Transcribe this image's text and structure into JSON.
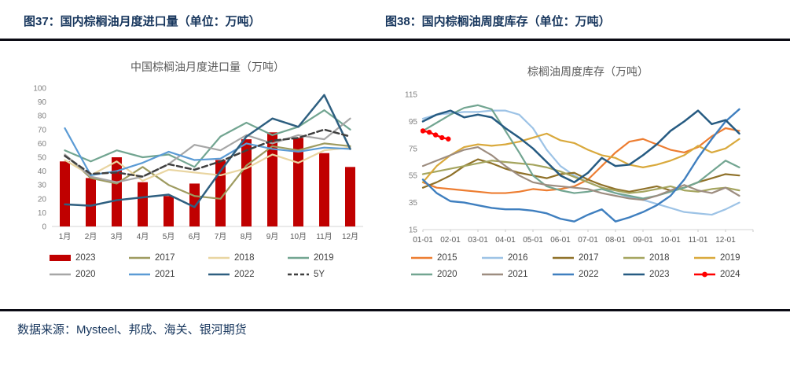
{
  "header": {
    "left_title": "图37：国内棕榈油月度进口量（单位：万吨）",
    "right_title": "图38：国内棕榈油周度库存（单位：万吨）"
  },
  "footer": {
    "source": "数据来源：Mysteel、邦成、海关、银河期货"
  },
  "colors": {
    "caption_navy": "#17365D",
    "bar_red": "#C00000",
    "series_2024_red": "#FF0000",
    "axis_gray": "#808080",
    "title_gray": "#595959"
  },
  "chart_data": [
    {
      "type": "bar",
      "title": "中国棕榈油月度进口量（万吨）",
      "xlabel": "",
      "ylabel": "",
      "ylim": [
        0,
        100
      ],
      "ytick_step": 10,
      "grid": false,
      "legend_position": "bottom",
      "categories": [
        "1月",
        "2月",
        "3月",
        "4月",
        "5月",
        "6月",
        "7月",
        "8月",
        "9月",
        "10月",
        "11月",
        "12月"
      ],
      "series": [
        {
          "name": "2023",
          "style": "bar",
          "color": "#C00000",
          "values": [
            47,
            35,
            50,
            32,
            22,
            31,
            48,
            63,
            68,
            64,
            53,
            43
          ]
        },
        {
          "name": "2017",
          "style": "line",
          "color": "#9E9B60",
          "values": [
            52,
            35,
            31,
            43,
            30,
            22,
            20,
            44,
            58,
            55,
            60,
            58
          ]
        },
        {
          "name": "2018",
          "style": "line",
          "color": "#E9D5A1",
          "values": [
            48,
            37,
            47,
            33,
            41,
            39,
            37,
            42,
            52,
            46,
            55,
            57
          ]
        },
        {
          "name": "2019",
          "style": "line",
          "color": "#72A591",
          "values": [
            55,
            47,
            55,
            50,
            52,
            43,
            65,
            75,
            66,
            72,
            84,
            70
          ]
        },
        {
          "name": "2020",
          "style": "line",
          "color": "#A6A6A6",
          "values": [
            52,
            36,
            32,
            36,
            45,
            59,
            55,
            66,
            60,
            66,
            63,
            78
          ]
        },
        {
          "name": "2021",
          "style": "line",
          "color": "#5B9BD5",
          "values": [
            71,
            37,
            40,
            46,
            54,
            48,
            49,
            60,
            56,
            54,
            57,
            56
          ]
        },
        {
          "name": "2022",
          "style": "line",
          "color": "#2E5F80",
          "width": 2.5,
          "values": [
            16,
            15,
            19,
            21,
            23,
            14,
            40,
            65,
            78,
            72,
            95,
            56
          ]
        },
        {
          "name": "5Y",
          "style": "dashed",
          "color": "#404040",
          "width": 2.5,
          "values": [
            51,
            38,
            39,
            36,
            45,
            41,
            47,
            55,
            62,
            64,
            70,
            65
          ]
        }
      ]
    },
    {
      "type": "line",
      "title": "棕榈油周度库存（万吨）",
      "xlabel": "",
      "ylabel": "",
      "ylim": [
        15,
        115
      ],
      "ytick_step": 20,
      "grid": false,
      "legend_position": "bottom",
      "x_ticks": [
        "01-01",
        "02-01",
        "03-01",
        "04-01",
        "05-01",
        "06-01",
        "07-01",
        "08-01",
        "09-01",
        "10-01",
        "11-01",
        "12-01"
      ],
      "series": [
        {
          "name": "2015",
          "style": "line",
          "color": "#ED7D31",
          "values": [
            50,
            46,
            45,
            44,
            43,
            42,
            42,
            43,
            45,
            44,
            45,
            47,
            52,
            62,
            72,
            80,
            82,
            78,
            74,
            72,
            76,
            84,
            90,
            88
          ]
        },
        {
          "name": "2016",
          "style": "line",
          "color": "#9DC3E6",
          "values": [
            97,
            100,
            101,
            102,
            102,
            103,
            103,
            100,
            90,
            74,
            62,
            55,
            50,
            46,
            42,
            39,
            37,
            34,
            31,
            28,
            27,
            26,
            30,
            35
          ]
        },
        {
          "name": "2017",
          "style": "line",
          "color": "#8F7129",
          "values": [
            46,
            50,
            55,
            62,
            67,
            64,
            60,
            57,
            55,
            53,
            56,
            57,
            52,
            48,
            45,
            43,
            45,
            47,
            44,
            46,
            50,
            53,
            56,
            55
          ]
        },
        {
          "name": "2018",
          "style": "line",
          "color": "#A5A55F",
          "values": [
            56,
            58,
            60,
            62,
            64,
            66,
            65,
            64,
            63,
            61,
            58,
            54,
            50,
            46,
            44,
            42,
            43,
            45,
            47,
            44,
            43,
            45,
            46,
            44
          ]
        },
        {
          "name": "2019",
          "style": "line",
          "color": "#D9A93C",
          "values": [
            50,
            62,
            70,
            76,
            78,
            77,
            78,
            80,
            83,
            86,
            81,
            79,
            74,
            70,
            68,
            63,
            61,
            63,
            66,
            70,
            77,
            72,
            75,
            82
          ]
        },
        {
          "name": "2020",
          "style": "line",
          "color": "#72A591",
          "values": [
            88,
            94,
            100,
            105,
            107,
            104,
            88,
            72,
            55,
            47,
            44,
            42,
            43,
            45,
            42,
            40,
            38,
            40,
            43,
            46,
            50,
            58,
            66,
            61
          ]
        },
        {
          "name": "2021",
          "style": "line",
          "color": "#9D8D80",
          "values": [
            62,
            66,
            70,
            74,
            76,
            70,
            62,
            55,
            50,
            48,
            47,
            46,
            45,
            42,
            40,
            38,
            37,
            40,
            44,
            48,
            44,
            42,
            46,
            40
          ]
        },
        {
          "name": "2022",
          "style": "line",
          "color": "#3F7FBF",
          "width": 2.4,
          "values": [
            52,
            42,
            36,
            35,
            33,
            31,
            30,
            30,
            29,
            27,
            23,
            21,
            26,
            30,
            21,
            24,
            28,
            33,
            40,
            52,
            68,
            82,
            95,
            104
          ]
        },
        {
          "name": "2023",
          "style": "line",
          "color": "#265B82",
          "width": 2.5,
          "values": [
            95,
            100,
            103,
            98,
            100,
            98,
            90,
            83,
            75,
            65,
            55,
            50,
            57,
            68,
            62,
            63,
            70,
            78,
            88,
            95,
            103,
            93,
            96,
            86
          ]
        },
        {
          "name": "2024",
          "style": "line-marker",
          "color": "#FF0000",
          "width": 2.4,
          "points_per_year": 52,
          "values": [
            88,
            87,
            85,
            83,
            82
          ]
        }
      ]
    }
  ]
}
